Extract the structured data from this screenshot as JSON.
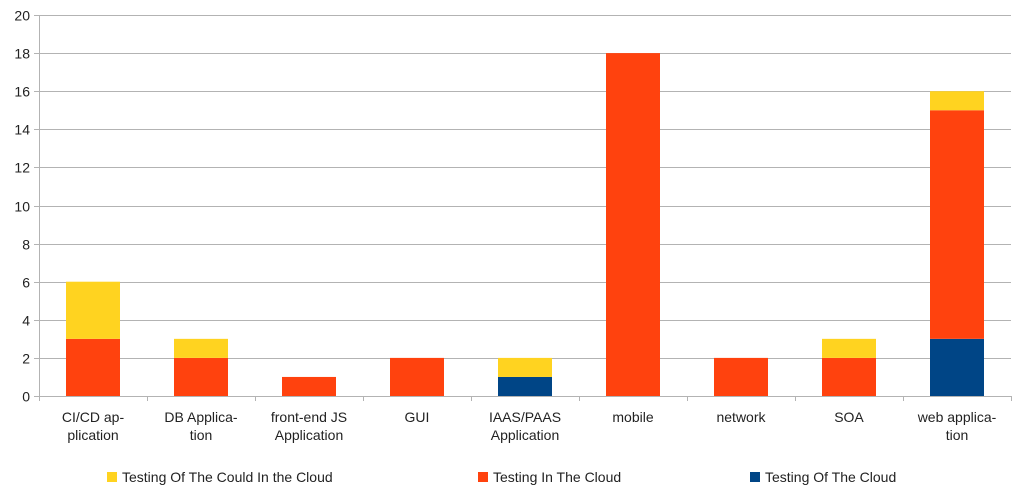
{
  "chart_data": {
    "type": "bar",
    "stacked": true,
    "title": "",
    "xlabel": "",
    "ylabel": "",
    "ylim": [
      0,
      20
    ],
    "yticks": [
      0,
      2,
      4,
      6,
      8,
      10,
      12,
      14,
      16,
      18,
      20
    ],
    "grid": true,
    "legend_position": "bottom",
    "categories": [
      [
        "CI/CD ap-",
        "plication"
      ],
      [
        "DB Applica-",
        "tion"
      ],
      [
        "front-end JS",
        "Application"
      ],
      [
        "GUI"
      ],
      [
        "IAAS/PAAS",
        "Application"
      ],
      [
        "mobile"
      ],
      [
        "network"
      ],
      [
        "SOA"
      ],
      [
        "web applica-",
        "tion"
      ]
    ],
    "series": [
      {
        "name": "Testing Of The Cloud",
        "color": "#004586",
        "values": [
          0,
          0,
          0,
          0,
          1,
          0,
          0,
          0,
          3
        ]
      },
      {
        "name": "Testing In The Cloud",
        "color": "#ff420e",
        "values": [
          3,
          2,
          1,
          2,
          0,
          18,
          2,
          2,
          12
        ]
      },
      {
        "name": "Testing Of The Could In the Cloud",
        "color": "#ffd320",
        "values": [
          3,
          1,
          0,
          0,
          1,
          0,
          0,
          1,
          1
        ]
      }
    ],
    "legend_order": [
      "Testing Of The Could In the Cloud",
      "Testing In The Cloud",
      "Testing Of The Cloud"
    ],
    "colors": {
      "grid": "#b3b3b3",
      "axis": "#b3b3b3"
    }
  }
}
